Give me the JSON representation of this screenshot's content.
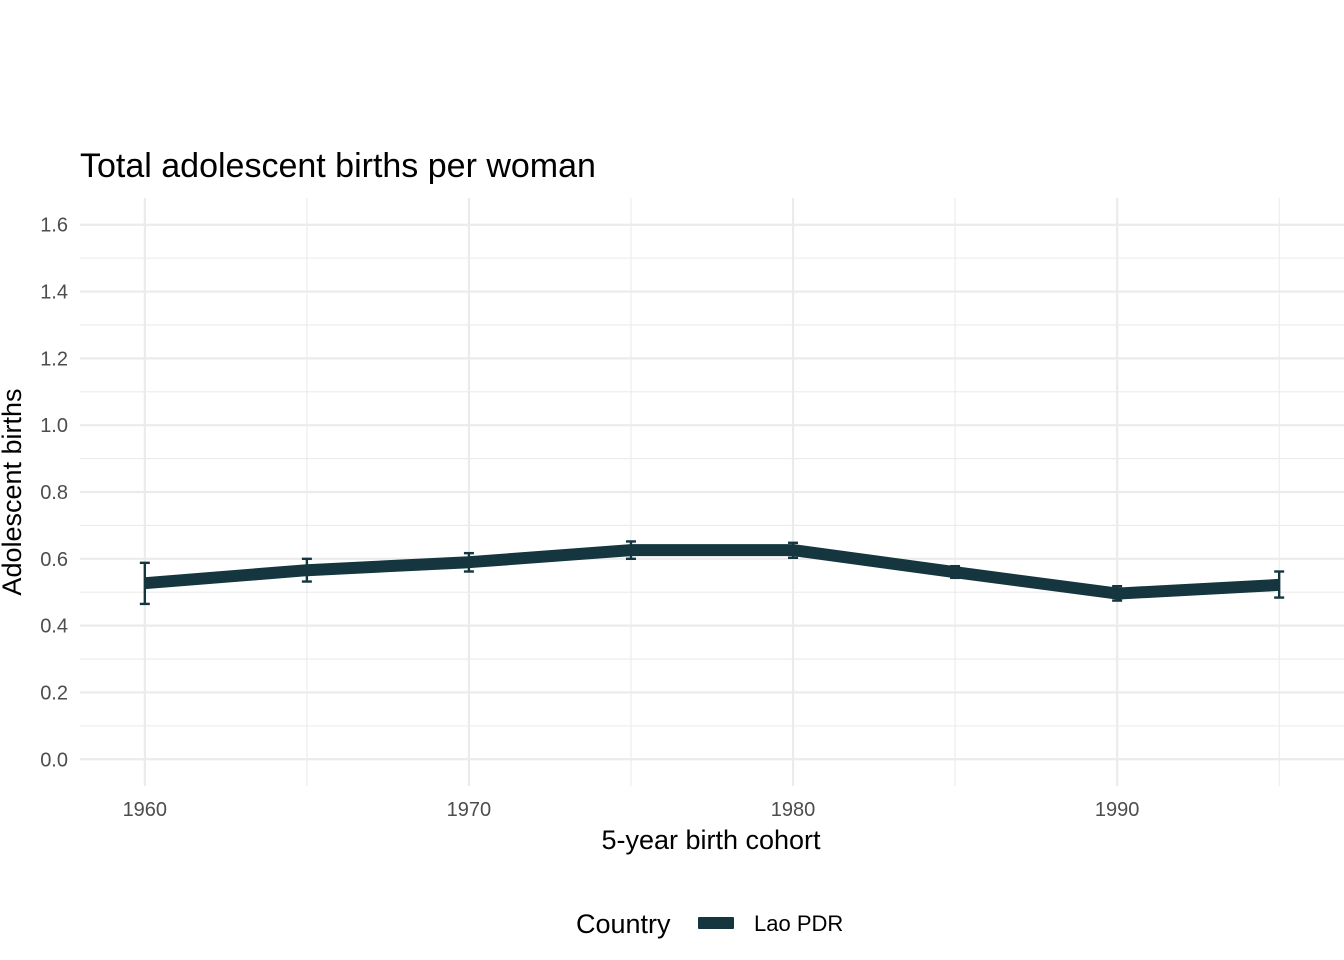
{
  "chart_data": {
    "type": "line",
    "title": "Total adolescent births per woman",
    "xlabel": "5-year birth cohort",
    "ylabel": "Adolescent births",
    "xlim": [
      1958,
      1997
    ],
    "ylim": [
      -0.08,
      1.68
    ],
    "x_ticks": [
      1960,
      1970,
      1980,
      1990
    ],
    "x_minor_ticks": [
      1965,
      1975,
      1985,
      1995
    ],
    "y_ticks": [
      0.0,
      0.2,
      0.4,
      0.6,
      0.8,
      1.0,
      1.2,
      1.4,
      1.6
    ],
    "y_minor_ticks": [
      0.1,
      0.3,
      0.5,
      0.7,
      0.9,
      1.1,
      1.3,
      1.5
    ],
    "grid": true,
    "legend": {
      "title": "Country",
      "position": "bottom"
    },
    "series": [
      {
        "name": "Lao PDR",
        "color": "#15363f",
        "x": [
          1960,
          1965,
          1970,
          1975,
          1980,
          1985,
          1990,
          1995
        ],
        "y": [
          0.527,
          0.566,
          0.59,
          0.626,
          0.626,
          0.56,
          0.496,
          0.522
        ],
        "y_lower": [
          0.465,
          0.532,
          0.562,
          0.6,
          0.603,
          0.543,
          0.475,
          0.484
        ],
        "y_upper": [
          0.588,
          0.6,
          0.617,
          0.652,
          0.648,
          0.578,
          0.518,
          0.562
        ]
      }
    ]
  }
}
